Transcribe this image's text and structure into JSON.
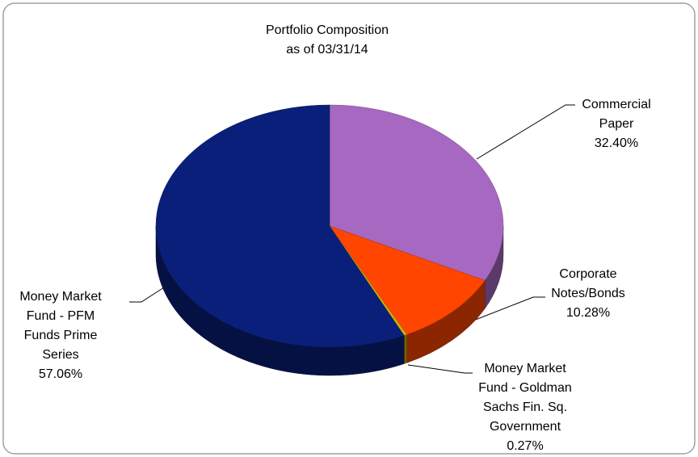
{
  "chart_data": {
    "type": "pie",
    "title": "Portfolio Composition",
    "subtitle": "as of 03/31/14",
    "categories": [
      "Commercial\nPaper",
      "Corporate\nNotes/Bonds",
      "Money Market\nFund - Goldman\nSachs Fin. Sq.\nGovernment",
      "Money Market\nFund - PFM\nFunds Prime\nSeries"
    ],
    "values": [
      32.4,
      10.28,
      0.27,
      57.06
    ],
    "value_labels": [
      "32.40%",
      "10.28%",
      "0.27%",
      "57.06%"
    ],
    "colors": [
      "#a668c0",
      "#ff4500",
      "#c8b400",
      "#0a1f7a"
    ]
  }
}
